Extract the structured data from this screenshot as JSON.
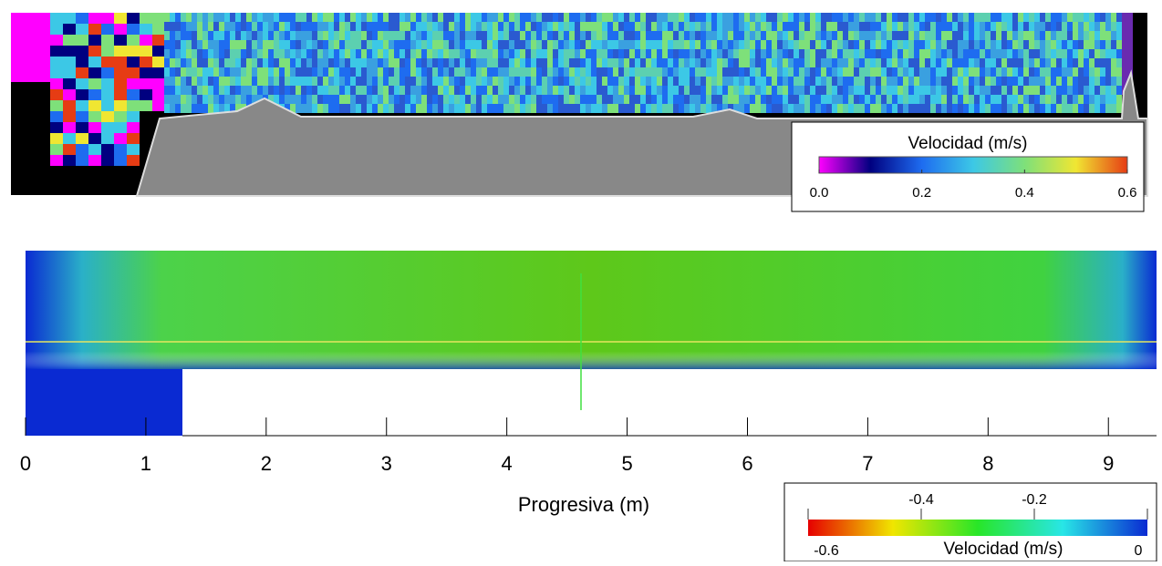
{
  "chart_data": [
    {
      "type": "heatmap",
      "colorbar_label": "Velocidad (m/s)",
      "clim": [
        0,
        0.6
      ],
      "cticks": [
        {
          "value": 0,
          "label": "0.0"
        },
        0.2,
        0.4,
        0.6
      ],
      "colors": [
        "#ff00ff",
        "#000080",
        "#1e6cf0",
        "#3cc8e6",
        "#7ee07a",
        "#f0e632",
        "#e63c14"
      ]
    },
    {
      "type": "heatmap",
      "xlabel": "Progresiva (m)",
      "xlim": [
        0,
        9.4
      ],
      "xticks": [
        0,
        1,
        2,
        3,
        4,
        5,
        6,
        7,
        8,
        9
      ],
      "colorbar_label": "Velocidad (m/s)",
      "clim": [
        -0.6,
        0
      ],
      "cticks": [
        -0.6,
        -0.4,
        -0.2,
        0
      ],
      "colors": [
        "#e60000",
        "#f0e600",
        "#28e628",
        "#28e6e6",
        "#0a2ad2"
      ]
    }
  ]
}
